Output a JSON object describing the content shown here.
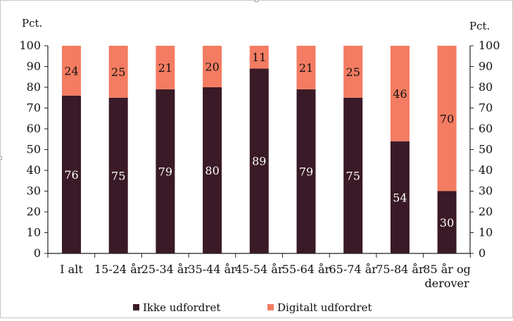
{
  "chart_data": {
    "type": "bar",
    "stacked": true,
    "unit_left": "Pct.",
    "unit_right": "Pct.",
    "ylim": [
      0,
      100
    ],
    "yticks": [
      0,
      10,
      20,
      30,
      40,
      50,
      60,
      70,
      80,
      90,
      100
    ],
    "categories": [
      [
        "I alt"
      ],
      [
        "15-24 år"
      ],
      [
        "25-34 år"
      ],
      [
        "35-44 år"
      ],
      [
        "45-54 år"
      ],
      [
        "55-64 år"
      ],
      [
        "65-74 år"
      ],
      [
        "75-84 år"
      ],
      [
        "85 år og",
        "derover"
      ]
    ],
    "series": [
      {
        "name": "Ikke udfordret",
        "color": "#3a1a27",
        "label_color": "#ffffff",
        "values": [
          76,
          75,
          79,
          80,
          89,
          79,
          75,
          54,
          30
        ]
      },
      {
        "name": "Digitalt udfordret",
        "color": "#f37c62",
        "label_color": "#111111",
        "values": [
          24,
          25,
          21,
          20,
          11,
          21,
          25,
          46,
          70
        ]
      }
    ],
    "legend_position": "bottom",
    "grid": false
  }
}
